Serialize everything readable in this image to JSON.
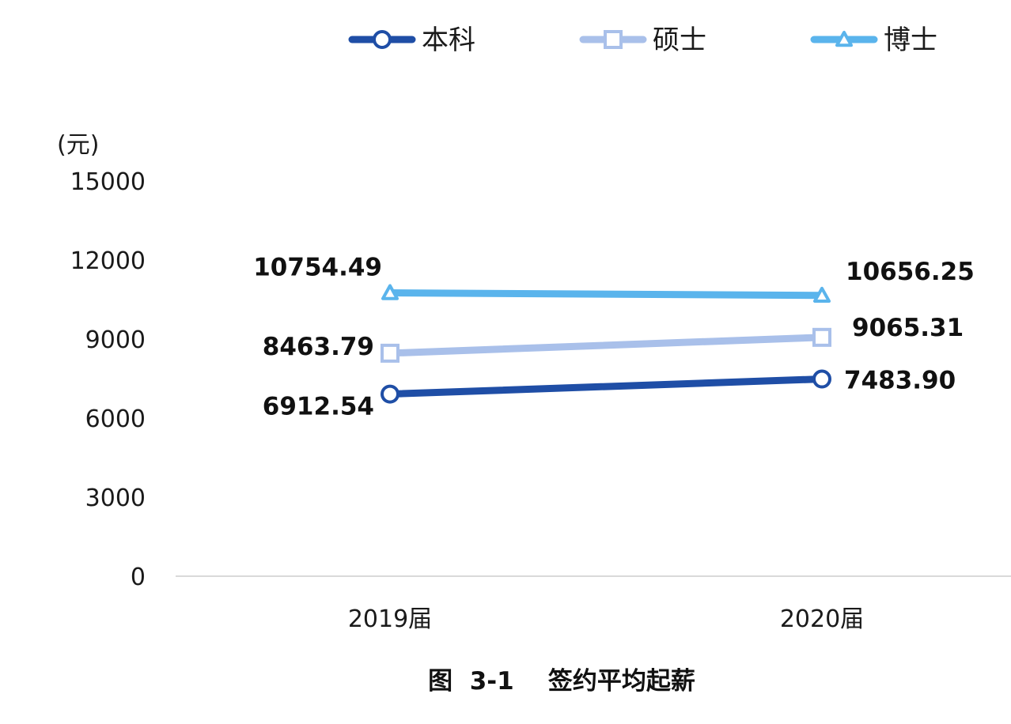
{
  "chart_data": {
    "type": "line",
    "caption": "图  3-1    签约平均起薪",
    "unit": "(元)",
    "categories": [
      "2019届",
      "2020届"
    ],
    "ylim": [
      0,
      15000
    ],
    "yticks": [
      "0",
      "3000",
      "6000",
      "9000",
      "12000",
      "15000"
    ],
    "grid": false,
    "legend": "top",
    "series": [
      {
        "name": "本科",
        "marker": "circle",
        "color": "#1f4ea6",
        "values": [
          6912.54,
          7483.9
        ],
        "labels": [
          "6912.54",
          "7483.90"
        ]
      },
      {
        "name": "硕士",
        "marker": "square",
        "color": "#a9c0ea",
        "values": [
          8463.79,
          9065.31
        ],
        "labels": [
          "8463.79",
          "9065.31"
        ]
      },
      {
        "name": "博士",
        "marker": "triangle",
        "color": "#5ab4ec",
        "values": [
          10754.49,
          10656.25
        ],
        "labels": [
          "10754.49",
          "10656.25"
        ]
      }
    ]
  }
}
